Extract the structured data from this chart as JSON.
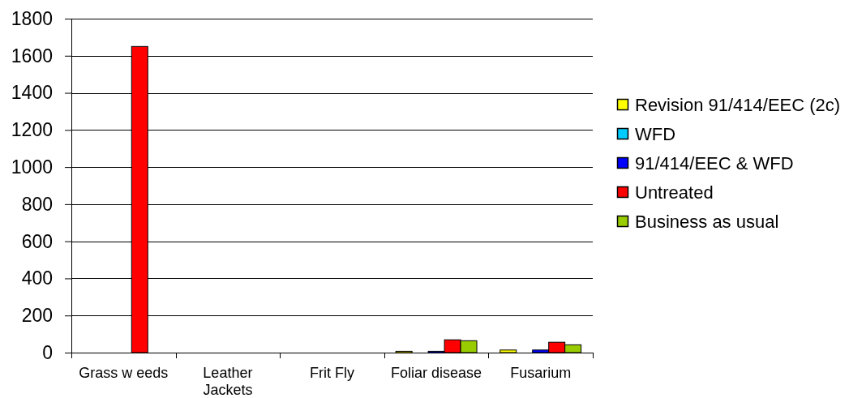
{
  "chart_data": {
    "type": "bar",
    "categories": [
      "Grass w eeds",
      "Leather Jackets",
      "Frit Fly",
      "Foliar disease",
      "Fusarium"
    ],
    "series": [
      {
        "name": "Revision 91/414/EEC (2c)",
        "color": "#ffff00",
        "values": [
          null,
          null,
          null,
          7,
          14
        ]
      },
      {
        "name": "WFD",
        "color": "#00ccff",
        "values": [
          null,
          null,
          null,
          null,
          null
        ]
      },
      {
        "name": "91/414/EEC & WFD",
        "color": "#0000ff",
        "values": [
          null,
          null,
          null,
          7,
          14
        ]
      },
      {
        "name": "Untreated",
        "color": "#ff0000",
        "values": [
          1650,
          null,
          null,
          69,
          56
        ]
      },
      {
        "name": "Business as usual",
        "color": "#99cc00",
        "values": [
          null,
          null,
          null,
          64,
          42
        ]
      }
    ],
    "ylim": [
      0,
      1800
    ],
    "yticks": [
      0,
      200,
      400,
      600,
      800,
      1000,
      1200,
      1400,
      1600,
      1800
    ],
    "grid": "y",
    "legend": "right"
  }
}
